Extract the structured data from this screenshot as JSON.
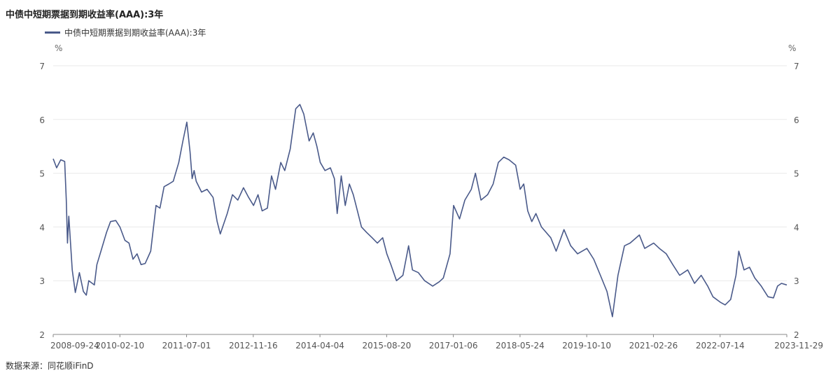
{
  "chart_data": {
    "type": "line",
    "title": "中债中短期票据到期收益率(AAA):3年",
    "legend": "中债中短期票据到期收益率(AAA):3年",
    "unit_left": "%",
    "unit_right": "%",
    "source": "数据来源：同花顺iFinD",
    "ylim": [
      2,
      7
    ],
    "yticks": [
      "2",
      "3",
      "4",
      "5",
      "6",
      "7"
    ],
    "xlim": [
      "2008-09-24",
      "2023-11-29"
    ],
    "xticks": [
      "2008-09-24",
      "2010-02-10",
      "2011-07-01",
      "2012-11-16",
      "2014-04-04",
      "2015-08-20",
      "2017-01-06",
      "2018-05-24",
      "2019-10-10",
      "2021-02-26",
      "2022-07-14",
      "2023-11-29"
    ],
    "grid": true,
    "legend_position": "top-left",
    "line_color": "#4a5a8a",
    "series": [
      {
        "name": "中债中短期票据到期收益率(AAA):3年",
        "points": [
          [
            "2008-09-24",
            5.27
          ],
          [
            "2008-10-20",
            5.1
          ],
          [
            "2008-11-20",
            5.25
          ],
          [
            "2008-12-20",
            5.22
          ],
          [
            "2009-01-01",
            4.5
          ],
          [
            "2009-01-10",
            3.7
          ],
          [
            "2009-01-20",
            4.2
          ],
          [
            "2009-02-15",
            3.2
          ],
          [
            "2009-03-10",
            2.78
          ],
          [
            "2009-04-10",
            3.15
          ],
          [
            "2009-05-10",
            2.8
          ],
          [
            "2009-06-01",
            2.73
          ],
          [
            "2009-06-20",
            3.0
          ],
          [
            "2009-08-01",
            2.92
          ],
          [
            "2009-08-20",
            3.3
          ],
          [
            "2009-09-20",
            3.55
          ],
          [
            "2009-11-01",
            3.9
          ],
          [
            "2009-12-01",
            4.1
          ],
          [
            "2010-01-10",
            4.12
          ],
          [
            "2010-02-10",
            4.0
          ],
          [
            "2010-03-20",
            3.75
          ],
          [
            "2010-04-20",
            3.7
          ],
          [
            "2010-05-20",
            3.4
          ],
          [
            "2010-06-20",
            3.5
          ],
          [
            "2010-07-20",
            3.3
          ],
          [
            "2010-08-20",
            3.32
          ],
          [
            "2010-10-01",
            3.55
          ],
          [
            "2010-11-10",
            4.4
          ],
          [
            "2010-12-10",
            4.35
          ],
          [
            "2011-01-10",
            4.75
          ],
          [
            "2011-02-15",
            4.8
          ],
          [
            "2011-03-20",
            4.85
          ],
          [
            "2011-05-01",
            5.2
          ],
          [
            "2011-06-01",
            5.6
          ],
          [
            "2011-07-01",
            5.95
          ],
          [
            "2011-07-25",
            5.4
          ],
          [
            "2011-08-10",
            4.9
          ],
          [
            "2011-08-25",
            5.05
          ],
          [
            "2011-09-10",
            4.85
          ],
          [
            "2011-10-20",
            4.65
          ],
          [
            "2011-12-01",
            4.7
          ],
          [
            "2012-01-15",
            4.55
          ],
          [
            "2012-02-15",
            4.1
          ],
          [
            "2012-03-10",
            3.87
          ],
          [
            "2012-05-01",
            4.25
          ],
          [
            "2012-06-10",
            4.6
          ],
          [
            "2012-07-20",
            4.5
          ],
          [
            "2012-09-01",
            4.73
          ],
          [
            "2012-10-10",
            4.55
          ],
          [
            "2012-11-16",
            4.4
          ],
          [
            "2012-12-20",
            4.6
          ],
          [
            "2013-01-20",
            4.3
          ],
          [
            "2013-03-01",
            4.35
          ],
          [
            "2013-04-01",
            4.95
          ],
          [
            "2013-05-01",
            4.7
          ],
          [
            "2013-06-10",
            5.2
          ],
          [
            "2013-07-10",
            5.05
          ],
          [
            "2013-08-20",
            5.45
          ],
          [
            "2013-10-01",
            6.2
          ],
          [
            "2013-11-01",
            6.28
          ],
          [
            "2013-12-01",
            6.1
          ],
          [
            "2014-01-10",
            5.6
          ],
          [
            "2014-02-10",
            5.75
          ],
          [
            "2014-03-10",
            5.5
          ],
          [
            "2014-04-04",
            5.2
          ],
          [
            "2014-05-10",
            5.05
          ],
          [
            "2014-06-20",
            5.1
          ],
          [
            "2014-07-20",
            4.9
          ],
          [
            "2014-08-10",
            4.25
          ],
          [
            "2014-09-10",
            4.95
          ],
          [
            "2014-10-10",
            4.4
          ],
          [
            "2014-11-10",
            4.8
          ],
          [
            "2014-12-10",
            4.6
          ],
          [
            "2015-01-10",
            4.3
          ],
          [
            "2015-02-10",
            4.0
          ],
          [
            "2015-03-20",
            3.9
          ],
          [
            "2015-05-01",
            3.8
          ],
          [
            "2015-06-10",
            3.7
          ],
          [
            "2015-07-20",
            3.8
          ],
          [
            "2015-08-20",
            3.5
          ],
          [
            "2015-09-20",
            3.3
          ],
          [
            "2015-11-01",
            3.0
          ],
          [
            "2015-12-20",
            3.1
          ],
          [
            "2016-02-01",
            3.65
          ],
          [
            "2016-03-01",
            3.2
          ],
          [
            "2016-04-15",
            3.15
          ],
          [
            "2016-06-01",
            3.0
          ],
          [
            "2016-08-01",
            2.9
          ],
          [
            "2016-09-20",
            2.98
          ],
          [
            "2016-10-20",
            3.05
          ],
          [
            "2016-12-10",
            3.5
          ],
          [
            "2017-01-06",
            4.4
          ],
          [
            "2017-02-20",
            4.15
          ],
          [
            "2017-04-01",
            4.5
          ],
          [
            "2017-05-20",
            4.7
          ],
          [
            "2017-06-20",
            5.0
          ],
          [
            "2017-08-01",
            4.5
          ],
          [
            "2017-09-20",
            4.6
          ],
          [
            "2017-11-01",
            4.8
          ],
          [
            "2017-12-10",
            5.2
          ],
          [
            "2018-01-20",
            5.3
          ],
          [
            "2018-03-01",
            5.25
          ],
          [
            "2018-04-20",
            5.15
          ],
          [
            "2018-05-24",
            4.7
          ],
          [
            "2018-06-20",
            4.8
          ],
          [
            "2018-07-20",
            4.3
          ],
          [
            "2018-08-20",
            4.1
          ],
          [
            "2018-09-20",
            4.25
          ],
          [
            "2018-11-01",
            4.0
          ],
          [
            "2019-01-10",
            3.8
          ],
          [
            "2019-02-20",
            3.55
          ],
          [
            "2019-04-20",
            3.95
          ],
          [
            "2019-06-10",
            3.65
          ],
          [
            "2019-08-01",
            3.5
          ],
          [
            "2019-10-10",
            3.6
          ],
          [
            "2019-12-01",
            3.4
          ],
          [
            "2020-01-20",
            3.1
          ],
          [
            "2020-03-10",
            2.8
          ],
          [
            "2020-04-20",
            2.33
          ],
          [
            "2020-06-01",
            3.1
          ],
          [
            "2020-07-20",
            3.65
          ],
          [
            "2020-09-01",
            3.7
          ],
          [
            "2020-11-10",
            3.85
          ],
          [
            "2020-12-20",
            3.6
          ],
          [
            "2021-02-26",
            3.7
          ],
          [
            "2021-04-10",
            3.6
          ],
          [
            "2021-06-01",
            3.5
          ],
          [
            "2021-07-20",
            3.3
          ],
          [
            "2021-09-10",
            3.1
          ],
          [
            "2021-11-10",
            3.2
          ],
          [
            "2022-01-01",
            2.95
          ],
          [
            "2022-02-20",
            3.1
          ],
          [
            "2022-04-10",
            2.9
          ],
          [
            "2022-05-20",
            2.7
          ],
          [
            "2022-07-14",
            2.6
          ],
          [
            "2022-08-20",
            2.55
          ],
          [
            "2022-10-01",
            2.65
          ],
          [
            "2022-11-10",
            3.1
          ],
          [
            "2022-12-01",
            3.55
          ],
          [
            "2023-01-10",
            3.2
          ],
          [
            "2023-02-20",
            3.25
          ],
          [
            "2023-04-01",
            3.05
          ],
          [
            "2023-05-20",
            2.9
          ],
          [
            "2023-07-10",
            2.7
          ],
          [
            "2023-08-20",
            2.68
          ],
          [
            "2023-09-20",
            2.9
          ],
          [
            "2023-10-20",
            2.95
          ],
          [
            "2023-11-29",
            2.92
          ]
        ]
      }
    ]
  }
}
